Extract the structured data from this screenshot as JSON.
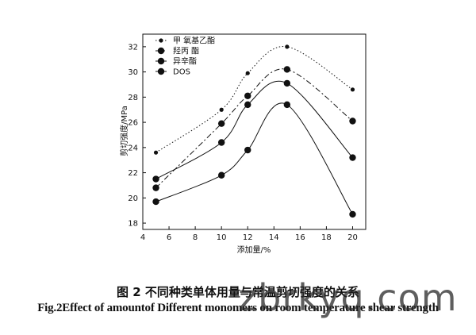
{
  "chart_data": {
    "type": "line",
    "xlabel": "添加量/%",
    "ylabel": "剪切强度/MPa",
    "xlim": [
      4,
      21
    ],
    "ylim": [
      17.5,
      33
    ],
    "xticks": [
      4,
      6,
      8,
      10,
      12,
      14,
      16,
      18,
      20
    ],
    "yticks": [
      18,
      20,
      22,
      24,
      26,
      28,
      30,
      32
    ],
    "legend_position": "top-left",
    "series": [
      {
        "name": "甲 氧基乙酯",
        "marker": "small-dot",
        "line": "dotted",
        "x": [
          5,
          10,
          12,
          15,
          20
        ],
        "y": [
          23.6,
          27.0,
          29.9,
          32.0,
          28.6
        ]
      },
      {
        "name": "羟丙 酯",
        "marker": "large-dot",
        "line": "dash-dot",
        "x": [
          5,
          10,
          12,
          15,
          20
        ],
        "y": [
          20.8,
          25.9,
          28.1,
          30.2,
          26.1
        ]
      },
      {
        "name": "异辛酯",
        "marker": "large-dot",
        "line": "solid",
        "x": [
          5,
          10,
          12,
          15,
          20
        ],
        "y": [
          21.5,
          24.4,
          27.4,
          29.1,
          23.2
        ]
      },
      {
        "name": "DOS",
        "marker": "large-dot",
        "line": "solid",
        "x": [
          5,
          10,
          12,
          15,
          20
        ],
        "y": [
          19.7,
          21.8,
          23.8,
          27.4,
          18.7
        ]
      }
    ]
  },
  "caption_cn": "图 2 不同种类单体用量与常温剪切强度的关系",
  "caption_en": "Fig.2Effect of amountof Different monomers on room temperature shear strength",
  "watermark": "zbrkyq.com"
}
